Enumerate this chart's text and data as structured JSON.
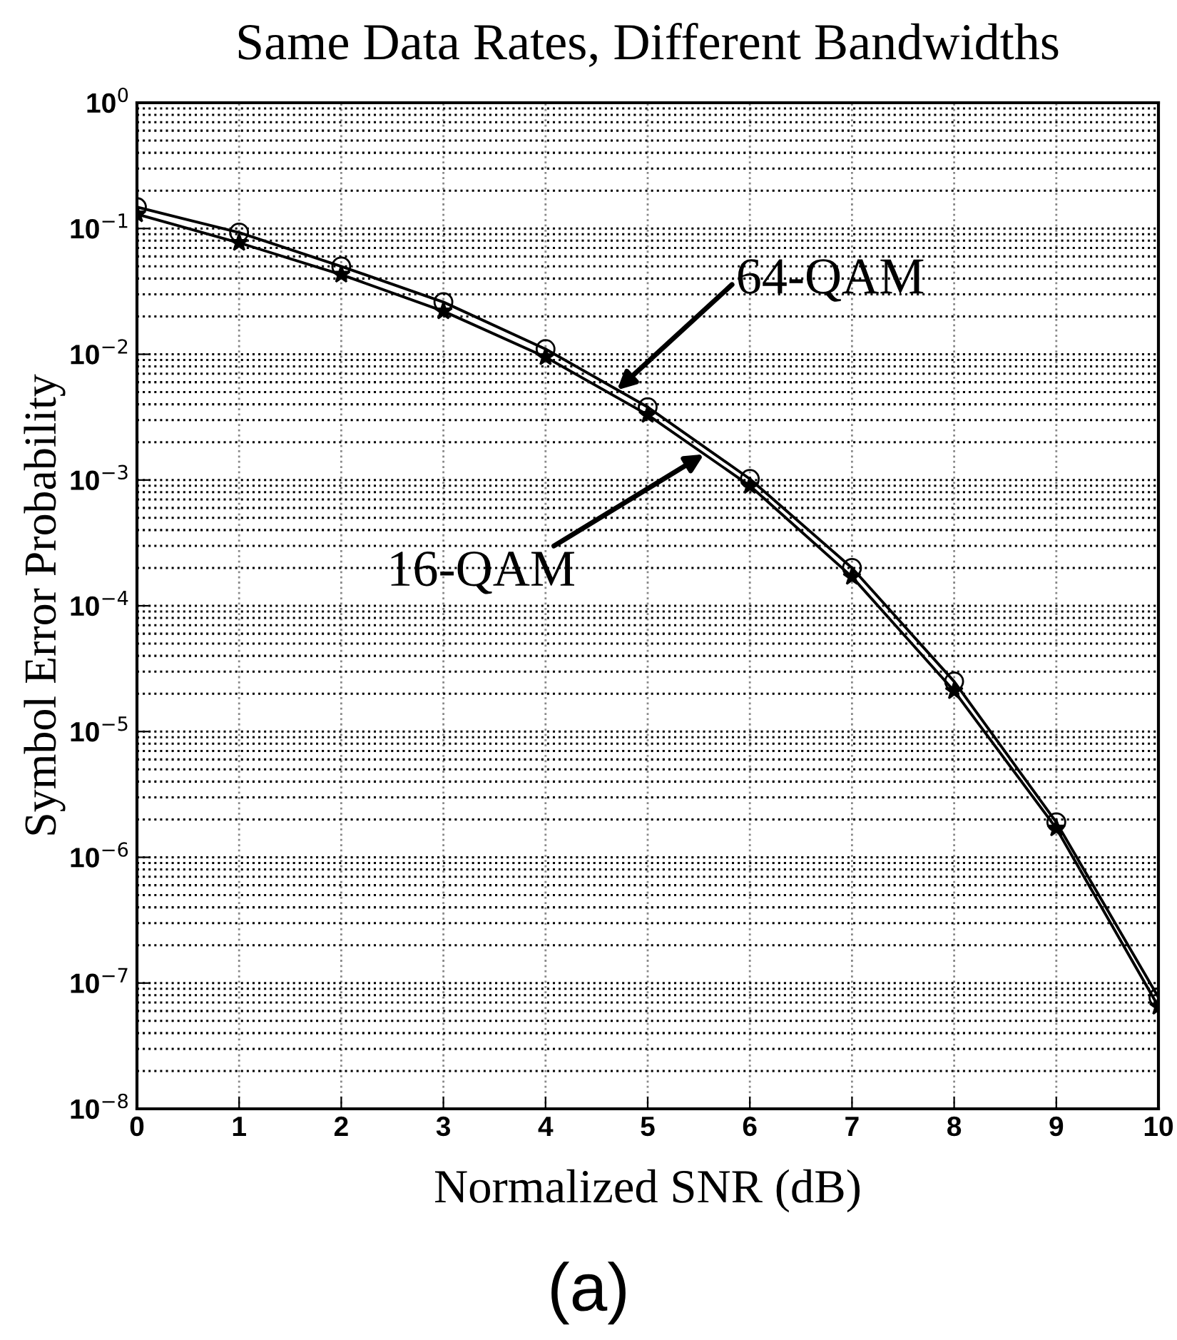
{
  "chart_data": {
    "type": "line",
    "title": "Same Data Rates, Different Bandwidths",
    "xlabel": "Normalized SNR (dB)",
    "ylabel": "Symbol Error Probability",
    "x": [
      0,
      1,
      2,
      3,
      4,
      5,
      6,
      7,
      8,
      9,
      10
    ],
    "series": [
      {
        "color": "#000000",
        "marker": "circle",
        "values": [
          0.148,
          0.093,
          0.05,
          0.026,
          0.011,
          0.0038,
          0.00102,
          0.0002,
          2.5e-05,
          1.9e-06,
          7.7e-08
        ]
      },
      {
        "color": "#000000",
        "marker": "star",
        "values": [
          0.13,
          0.077,
          0.043,
          0.022,
          0.0095,
          0.0033,
          0.0009,
          0.00017,
          2.1e-05,
          1.7e-06,
          6.5e-08
        ]
      }
    ],
    "log": "y",
    "line_style": "solid",
    "grid": true,
    "xlim": [
      0,
      10
    ],
    "xticks": [
      0,
      1,
      2,
      3,
      4,
      5,
      6,
      7,
      8,
      9,
      10
    ],
    "ylim": [
      1e-08,
      1
    ],
    "yticks": [
      {
        "value": 1e-08,
        "label": "10$^{−8}$"
      },
      {
        "value": 1e-07,
        "label": "10$^{−7}$"
      },
      {
        "value": 1e-06,
        "label": "10$^{−6}$"
      },
      {
        "value": 1e-05,
        "label": "10$^{−5}$"
      },
      {
        "value": 0.0001,
        "label": "10$^{−4}$"
      },
      {
        "value": 0.001,
        "label": "10$^{−3}$"
      },
      {
        "value": 0.01,
        "label": "10$^{−2}$"
      },
      {
        "value": 0.1,
        "label": "10$^{−1}$"
      },
      {
        "value": 1,
        "label": "10$^{0}$"
      }
    ],
    "annotations": [
      {
        "text": "64-QAM",
        "x": 4.7,
        "y": 0.0052
      },
      {
        "text": "16-QAM",
        "x": 5.55,
        "y": 0.0016
      },
      "(a)"
    ]
  }
}
